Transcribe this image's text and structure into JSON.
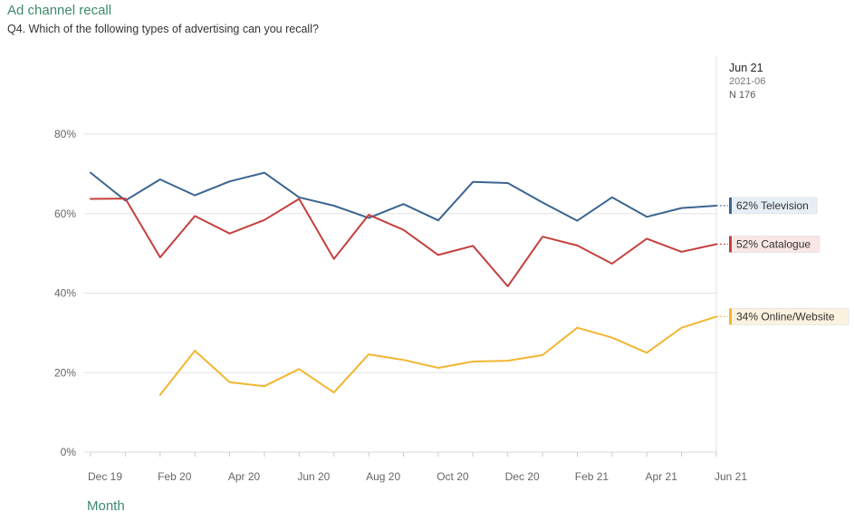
{
  "header": {
    "title": "Ad channel recall",
    "subtitle": "Q4. Which of the following types of advertising can you recall?"
  },
  "period": {
    "date": "Jun 21",
    "code": "2021-06",
    "n": "N 176"
  },
  "chart_data": {
    "type": "line",
    "title": "Ad channel recall",
    "subtitle": "Q4. Which of the following types of advertising can you recall?",
    "xlabel": "Month",
    "ylabel": "",
    "x": [
      "Dec 19",
      "Jan 20",
      "Feb 20",
      "Mar 20",
      "Apr 20",
      "May 20",
      "Jun 20",
      "Jul 20",
      "Aug 20",
      "Sep 20",
      "Oct 20",
      "Nov 20",
      "Dec 20",
      "Jan 21",
      "Feb 21",
      "Mar 21",
      "Apr 21",
      "May 21",
      "Jun 21"
    ],
    "x_tick_labels": [
      "Dec 19",
      "Feb 20",
      "Apr 20",
      "Jun 20",
      "Aug 20",
      "Oct 20",
      "Dec 20",
      "Feb 21",
      "Apr 21",
      "Jun 21"
    ],
    "y_ticks": [
      0,
      20,
      40,
      60,
      80
    ],
    "y_tick_labels": [
      "0%",
      "20%",
      "40%",
      "60%",
      "80%"
    ],
    "ylim": [
      0,
      80
    ],
    "grid": true,
    "series": [
      {
        "name": "Television",
        "color": "#3a6591",
        "values": [
          70.3,
          63.3,
          68.6,
          64.6,
          68.1,
          70.3,
          64.1,
          62.0,
          58.9,
          62.4,
          58.3,
          68.0,
          67.7,
          62.8,
          58.2,
          64.1,
          59.2,
          61.4,
          62.0
        ],
        "end_label": "62% Television",
        "label_bg": "#e6eef6"
      },
      {
        "name": "Catalogue",
        "color": "#c4403d",
        "values": [
          63.7,
          63.8,
          49.0,
          59.4,
          55.0,
          58.4,
          63.7,
          48.6,
          59.7,
          55.9,
          49.6,
          51.9,
          41.7,
          54.2,
          52.0,
          47.4,
          53.7,
          50.4,
          52.3
        ],
        "end_label": "52% Catalogue",
        "label_bg": "#f8e7e6"
      },
      {
        "name": "Online/Website",
        "color": "#f2b632",
        "values": [
          null,
          null,
          14.4,
          25.5,
          17.6,
          16.6,
          20.9,
          15.0,
          24.6,
          23.2,
          21.2,
          22.8,
          23.0,
          24.4,
          31.3,
          28.8,
          25.0,
          31.3,
          34.1
        ],
        "end_label": "34% Online/Website",
        "label_bg": "#fdf2de"
      }
    ]
  },
  "axis": {
    "month_label": "Month"
  }
}
